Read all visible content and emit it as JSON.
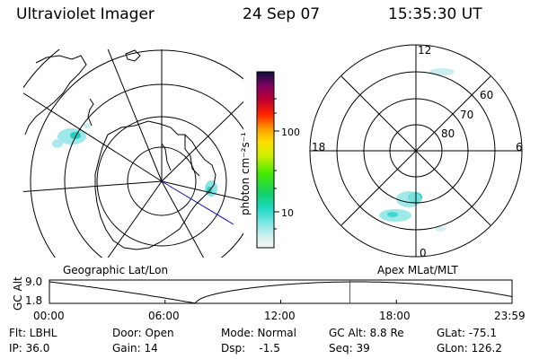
{
  "header": {
    "instrument": "Ultraviolet Imager",
    "date": "24 Sep 07",
    "time": "15:35:30 UT"
  },
  "colorbar": {
    "unit_label": "photon cm⁻²s⁻¹",
    "ticks": [
      "100",
      "10"
    ]
  },
  "right_map": {
    "mlt_labels": {
      "top": "12",
      "left": "18",
      "right": "6",
      "bottom": "0"
    },
    "lat_labels": [
      "60",
      "70",
      "80"
    ]
  },
  "timeline": {
    "left_title": "Geographic Lat/Lon",
    "right_title": "Apex MLat/MLT",
    "ylabel": "GC Alt",
    "ymax": "9.0",
    "ymin": "1.8",
    "xticks": [
      "00:00",
      "06:00",
      "12:00",
      "18:00",
      "23:59"
    ],
    "current_time_hours": 15.59
  },
  "info": {
    "row1": {
      "flt": "Flt: LBHL",
      "door": "Door: Open",
      "mode": "Mode: Normal",
      "gc_alt": "GC Alt: 8.8 Re",
      "glat": "GLat: -75.1"
    },
    "row2": {
      "ip": "IP: 36.0",
      "gain": "Gain: 14",
      "dsp": "Dsp:    -1.5",
      "seq": "Seq: 39",
      "glon": "GLon: 126.2"
    }
  }
}
